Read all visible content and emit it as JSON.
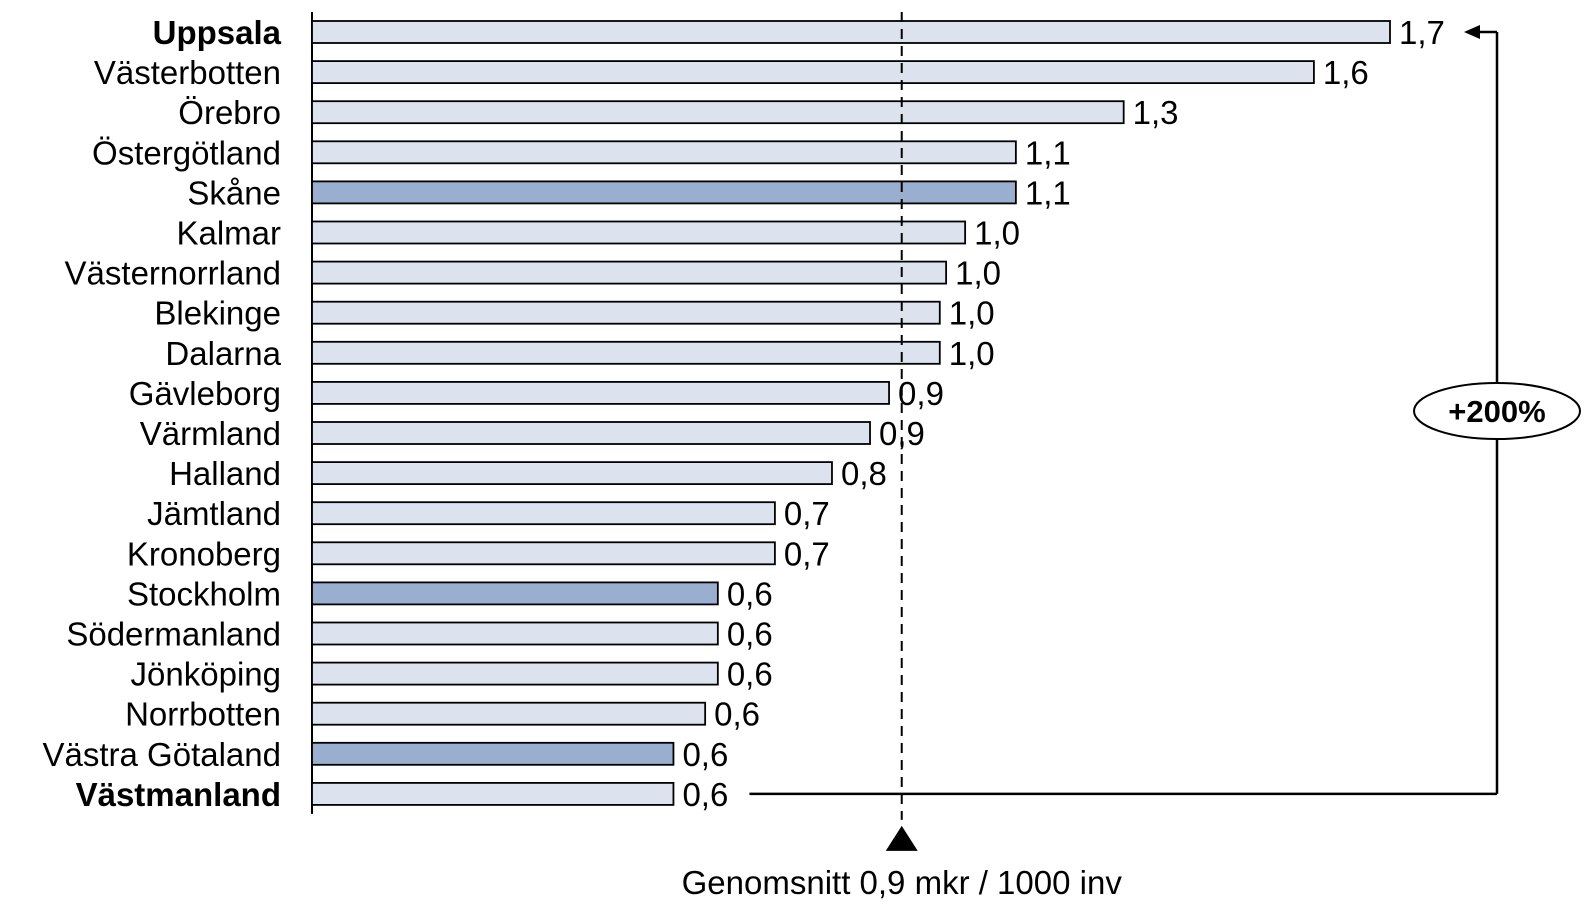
{
  "chart_data": {
    "type": "bar",
    "orientation": "horizontal",
    "categories": [
      "Uppsala",
      "Västerbotten",
      "Örebro",
      "Östergötland",
      "Skåne",
      "Kalmar",
      "Västernorrland",
      "Blekinge",
      "Dalarna",
      "Gävleborg",
      "Värmland",
      "Halland",
      "Jämtland",
      "Kronoberg",
      "Stockholm",
      "Södermanland",
      "Jönköping",
      "Norrbotten",
      "Västra Götaland",
      "Västmanland"
    ],
    "values": [
      1.7,
      1.6,
      1.3,
      1.1,
      1.1,
      1.0,
      1.0,
      1.0,
      1.0,
      0.9,
      0.9,
      0.8,
      0.7,
      0.7,
      0.6,
      0.6,
      0.6,
      0.6,
      0.6,
      0.6
    ],
    "plot_values": [
      1.7,
      1.58,
      1.28,
      1.11,
      1.11,
      1.03,
      1.0,
      0.99,
      0.99,
      0.91,
      0.88,
      0.82,
      0.73,
      0.73,
      0.64,
      0.64,
      0.64,
      0.62,
      0.57,
      0.57
    ],
    "value_labels": [
      "1,7",
      "1,6",
      "1,3",
      "1,1",
      "1,1",
      "1,0",
      "1,0",
      "1,0",
      "1,0",
      "0,9",
      "0,9",
      "0,8",
      "0,7",
      "0,7",
      "0,6",
      "0,6",
      "0,6",
      "0,6",
      "0,6",
      "0,6"
    ],
    "bold_categories": [
      "Uppsala",
      "Västmanland"
    ],
    "highlighted_categories": [
      "Skåne",
      "Stockholm",
      "Västra Götaland"
    ],
    "average": 0.93,
    "average_label": "Genomsnitt 0,9 mkr / 1000 inv",
    "range_label": "+200%",
    "xlim": [
      0,
      1.7
    ],
    "grid": false,
    "legend": "none",
    "colors": {
      "bar_default": "#dce3ee",
      "bar_highlight": "#9aafd0",
      "bar_stroke": "#000000"
    }
  }
}
